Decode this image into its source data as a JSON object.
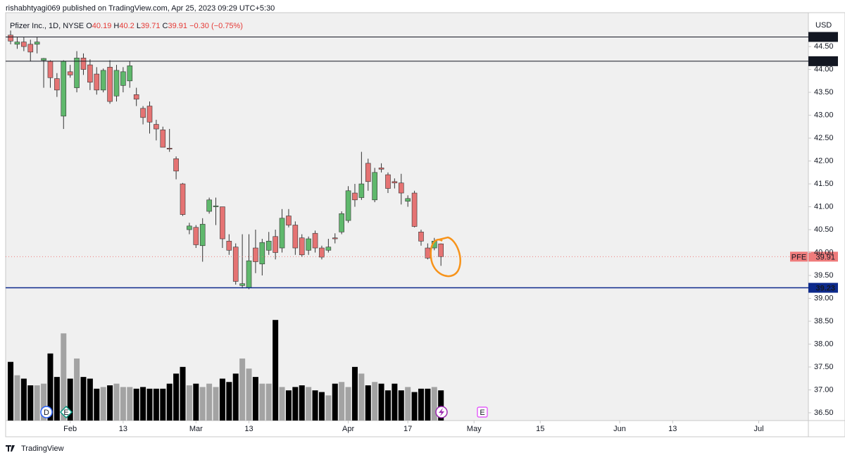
{
  "header": "rishabhtyagi069 published on TradingView.com, Apr 25, 2023 09:29 UTC+5:30",
  "footer": "TradingView",
  "chart_data": {
    "type": "candlestick",
    "currency": "USD",
    "legend": {
      "name": "Pfizer Inc., 1D, NYSE",
      "labels": [
        "O",
        "H",
        "L",
        "C"
      ],
      "open": 40.19,
      "high": 40.2,
      "low": 39.71,
      "close": 39.91,
      "change": {
        "value": -0.3,
        "label": "−0.30"
      },
      "change_pct": {
        "value": -0.75,
        "label": "(−0.75%)"
      }
    },
    "up_color": "#5fb86c",
    "down_color": "#e57373",
    "open": [
      44.75,
      44.55,
      44.6,
      44.55,
      44.55,
      44.2,
      44.18,
      43.8,
      42.98,
      43.95,
      43.6,
      44.25,
      44.1,
      43.9,
      43.55,
      44.05,
      43.42,
      43.65,
      43.75,
      43.45,
      43.15,
      43.2,
      42.8,
      42.68,
      42.28,
      42.05,
      41.5,
      40.5,
      40.55,
      40.15,
      40.9,
      41.0,
      41.0,
      40.25,
      40.12,
      39.28,
      39.23,
      40.1,
      39.75,
      40.05,
      40.35,
      40.1,
      40.8,
      40.6,
      40.32,
      40.05,
      40.42,
      40.1,
      40.05,
      40.32,
      40.45,
      40.7,
      41.3,
      41.2,
      41.95,
      41.15,
      41.85,
      41.7,
      41.55,
      41.52,
      41.12,
      41.3,
      40.45,
      40.1,
      40.1,
      40.19
    ],
    "high": [
      44.85,
      44.7,
      44.7,
      44.65,
      44.7,
      44.25,
      44.2,
      43.92,
      44.2,
      44.1,
      44.4,
      44.35,
      44.22,
      44.05,
      44.02,
      44.2,
      44.1,
      44.05,
      44.18,
      43.6,
      43.2,
      43.3,
      42.9,
      42.75,
      42.7,
      42.1,
      41.52,
      40.65,
      40.6,
      40.75,
      41.2,
      41.2,
      41.0,
      40.4,
      40.2,
      40.4,
      40.4,
      40.5,
      40.3,
      40.45,
      40.5,
      40.95,
      40.95,
      40.68,
      40.4,
      40.35,
      40.48,
      40.15,
      40.3,
      40.42,
      40.9,
      41.45,
      41.5,
      42.2,
      42.05,
      41.85,
      41.95,
      41.75,
      41.62,
      41.72,
      41.25,
      41.35,
      40.5,
      40.2,
      40.32,
      40.2
    ],
    "low": [
      44.55,
      44.45,
      44.4,
      44.18,
      44.35,
      43.6,
      43.6,
      43.4,
      42.7,
      43.82,
      43.5,
      43.88,
      43.55,
      43.45,
      43.5,
      43.25,
      43.3,
      43.5,
      43.6,
      43.2,
      42.8,
      42.6,
      42.45,
      42.3,
      42.2,
      41.6,
      40.8,
      40.4,
      40.1,
      39.8,
      40.85,
      40.6,
      40.1,
      39.95,
      39.3,
      39.22,
      39.2,
      39.55,
      39.5,
      39.95,
      39.85,
      40.0,
      40.55,
      39.95,
      39.9,
      39.95,
      40.0,
      39.85,
      40.0,
      40.2,
      40.4,
      40.65,
      41.0,
      41.15,
      41.35,
      41.1,
      41.75,
      41.3,
      41.4,
      41.05,
      41.0,
      40.55,
      40.15,
      39.85,
      40.05,
      39.71
    ],
    "close": [
      44.62,
      44.6,
      44.5,
      44.38,
      44.6,
      44.24,
      43.82,
      43.55,
      44.18,
      43.88,
      44.25,
      44.0,
      43.72,
      43.55,
      43.98,
      43.3,
      43.98,
      43.95,
      44.08,
      43.35,
      42.95,
      42.85,
      42.7,
      42.3,
      42.26,
      41.78,
      40.83,
      40.58,
      40.17,
      40.62,
      41.15,
      41.02,
      40.3,
      40.05,
      39.37,
      39.32,
      39.82,
      39.8,
      40.22,
      40.25,
      40.0,
      40.75,
      40.6,
      40.1,
      39.95,
      40.3,
      40.1,
      39.9,
      40.12,
      40.3,
      40.85,
      41.35,
      41.15,
      41.5,
      41.55,
      41.75,
      41.82,
      41.4,
      41.52,
      41.3,
      41.18,
      40.57,
      40.25,
      39.88,
      40.25,
      39.91
    ],
    "volumes": [
      35,
      27,
      25,
      21,
      21,
      22,
      40,
      26,
      52,
      25,
      37,
      26,
      25,
      19,
      20,
      21,
      22,
      20,
      20,
      19,
      20,
      19,
      19,
      19,
      22,
      28,
      32,
      21,
      22,
      20,
      22,
      20,
      25,
      23,
      28,
      37,
      31,
      26,
      22,
      22,
      60,
      20,
      18,
      20,
      21,
      20,
      18,
      17,
      15,
      22,
      23,
      20,
      32,
      28,
      21,
      23,
      22,
      18,
      22,
      18,
      20,
      17,
      19,
      19,
      20,
      18
    ],
    "volume_ylim": [
      0,
      100
    ],
    "volume_colors": {
      "up": "#a3a3a3",
      "down": "#000000"
    },
    "xlim": [
      -0.75,
      120.5
    ],
    "xticks": [
      {
        "value": 9,
        "label": "Feb"
      },
      {
        "value": 17,
        "label": "13"
      },
      {
        "value": 28,
        "label": "Mar"
      },
      {
        "value": 36,
        "label": "13"
      },
      {
        "value": 51,
        "label": "Apr"
      },
      {
        "value": 60,
        "label": "17"
      },
      {
        "value": 70,
        "label": "May"
      },
      {
        "value": 80,
        "label": "15"
      },
      {
        "value": 92,
        "label": "Jun"
      },
      {
        "value": 100,
        "label": "13"
      },
      {
        "value": 113,
        "label": "Jul"
      }
    ],
    "ylim": [
      36.33,
      45.24
    ],
    "yticks": [
      {
        "value": 36.5,
        "label": "36.50"
      },
      {
        "value": 37,
        "label": "37.00"
      },
      {
        "value": 37.5,
        "label": "37.50"
      },
      {
        "value": 38,
        "label": "38.00"
      },
      {
        "value": 38.5,
        "label": "38.50"
      },
      {
        "value": 39,
        "label": "39.00"
      },
      {
        "value": 39.5,
        "label": "39.50"
      },
      {
        "value": 40,
        "label": "40.00"
      },
      {
        "value": 40.5,
        "label": "40.50"
      },
      {
        "value": 41,
        "label": "41.00"
      },
      {
        "value": 41.5,
        "label": "41.50"
      },
      {
        "value": 42,
        "label": "42.00"
      },
      {
        "value": 42.5,
        "label": "42.50"
      },
      {
        "value": 43,
        "label": "43.00"
      },
      {
        "value": 43.5,
        "label": "43.50"
      },
      {
        "value": 44,
        "label": "44.00"
      },
      {
        "value": 44.5,
        "label": "44.50"
      }
    ],
    "hlines": [
      {
        "value": 44.71,
        "color": "#131722"
      },
      {
        "value": 44.18,
        "color": "#131722"
      },
      {
        "value": 39.23,
        "color": "#0d2a8c"
      }
    ],
    "last_price": {
      "symbol": "PFE",
      "value": 39.91,
      "color": "#ef7b7b"
    },
    "events": [
      "D",
      "E",
      "E"
    ]
  }
}
